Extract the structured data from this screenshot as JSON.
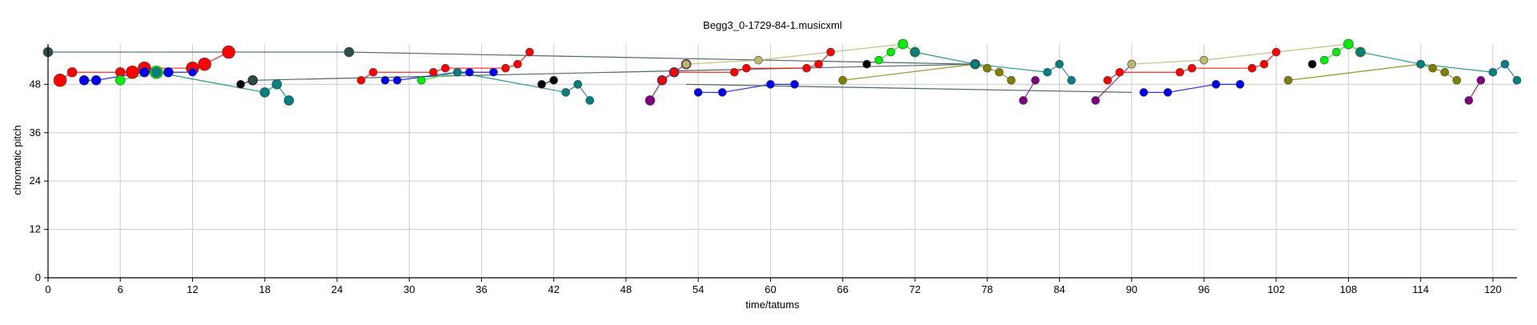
{
  "chart_data": {
    "type": "scatter",
    "title": "Begg3_0-1729-84-1.musicxml",
    "xlabel": "time/tatums",
    "ylabel": "chromatic pitch",
    "xlim": [
      0,
      122
    ],
    "ylim": [
      0,
      58
    ],
    "xticks": [
      0,
      6,
      12,
      18,
      24,
      30,
      36,
      42,
      48,
      54,
      60,
      66,
      72,
      78,
      84,
      90,
      96,
      102,
      108,
      114,
      120
    ],
    "yticks": [
      0,
      12,
      24,
      36,
      48
    ],
    "grid": true,
    "legend": "none",
    "colors": {
      "red": "#ff0000",
      "blue": "#0000ee",
      "lime": "#00ee00",
      "teal": "#008080",
      "black": "#000000",
      "darkslate": "#2f4f4f",
      "olive": "#808000",
      "khaki": "#bdb76b",
      "purple": "#800080",
      "magenta": "#ff00ff"
    },
    "series": [
      {
        "color": "red",
        "values": [
          [
            1,
            49
          ],
          [
            2,
            51
          ],
          [
            6,
            51
          ],
          [
            7,
            51
          ],
          [
            8,
            52
          ],
          [
            12,
            52
          ],
          [
            13,
            53
          ],
          [
            15,
            56
          ]
        ],
        "sizes": [
          8,
          6,
          6,
          8,
          8,
          8,
          8,
          8
        ]
      },
      {
        "color": "blue",
        "values": [
          [
            3,
            49
          ],
          [
            4,
            49
          ],
          [
            8,
            51
          ],
          [
            10,
            51
          ],
          [
            12,
            51
          ]
        ],
        "sizes": [
          6,
          6,
          6,
          6,
          5
        ]
      },
      {
        "color": "lime",
        "values": [
          [
            6,
            49
          ],
          [
            9,
            51
          ]
        ],
        "sizes": [
          6,
          8
        ]
      },
      {
        "color": "teal",
        "values": [
          [
            9,
            51
          ],
          [
            18,
            46
          ],
          [
            19,
            48
          ],
          [
            20,
            44
          ]
        ],
        "sizes": [
          6,
          6,
          6,
          6
        ]
      },
      {
        "color": "black",
        "values": [
          [
            16,
            48
          ],
          [
            17,
            49
          ]
        ],
        "sizes": [
          5,
          6
        ]
      },
      {
        "color": "darkslate",
        "values": [
          [
            0,
            56
          ],
          [
            25,
            56
          ],
          [
            77,
            53
          ],
          [
            17,
            49
          ]
        ],
        "sizes": [
          6,
          6,
          6,
          5
        ]
      },
      {
        "color": "red",
        "values": [
          [
            26,
            49
          ],
          [
            27,
            51
          ],
          [
            32,
            51
          ],
          [
            33,
            52
          ],
          [
            38,
            52
          ],
          [
            39,
            53
          ],
          [
            40,
            56
          ]
        ],
        "sizes": [
          5,
          5,
          5,
          5,
          5,
          5,
          5
        ]
      },
      {
        "color": "blue",
        "values": [
          [
            28,
            49
          ],
          [
            29,
            49
          ],
          [
            34,
            51
          ],
          [
            35,
            51
          ],
          [
            37,
            51
          ]
        ],
        "sizes": [
          5,
          5,
          5,
          5,
          5
        ]
      },
      {
        "color": "lime",
        "values": [
          [
            31,
            49
          ],
          [
            34,
            51
          ]
        ],
        "sizes": [
          5,
          5
        ]
      },
      {
        "color": "teal",
        "values": [
          [
            34,
            51
          ],
          [
            43,
            46
          ],
          [
            44,
            48
          ],
          [
            45,
            44
          ]
        ],
        "sizes": [
          5,
          5,
          5,
          5
        ]
      },
      {
        "color": "black",
        "values": [
          [
            41,
            48
          ],
          [
            42,
            49
          ]
        ],
        "sizes": [
          5,
          5
        ]
      },
      {
        "color": "purple",
        "values": [
          [
            50,
            44
          ],
          [
            51,
            49
          ],
          [
            52,
            51
          ],
          [
            53,
            53
          ]
        ],
        "sizes": [
          6,
          6,
          6,
          6
        ]
      },
      {
        "color": "red",
        "values": [
          [
            51,
            49
          ],
          [
            52,
            51
          ],
          [
            57,
            51
          ],
          [
            58,
            52
          ],
          [
            63,
            52
          ],
          [
            64,
            53
          ],
          [
            65,
            56
          ]
        ],
        "sizes": [
          5,
          5,
          5,
          5,
          5,
          5,
          5
        ]
      },
      {
        "color": "blue",
        "values": [
          [
            54,
            46
          ],
          [
            56,
            46
          ],
          [
            60,
            48
          ],
          [
            62,
            48
          ]
        ],
        "sizes": [
          5,
          5,
          5,
          5
        ]
      },
      {
        "color": "olive",
        "values": [
          [
            66,
            49
          ],
          [
            77,
            53
          ],
          [
            78,
            52
          ],
          [
            79,
            51
          ],
          [
            80,
            49
          ]
        ],
        "sizes": [
          5,
          5,
          5,
          5,
          5
        ]
      },
      {
        "color": "khaki",
        "values": [
          [
            53,
            53
          ],
          [
            59,
            54
          ],
          [
            71,
            58
          ],
          [
            72,
            56
          ]
        ],
        "sizes": [
          5,
          5,
          6,
          6
        ]
      },
      {
        "color": "lime",
        "values": [
          [
            69,
            54
          ],
          [
            70,
            56
          ],
          [
            71,
            58
          ],
          [
            72,
            56
          ]
        ],
        "sizes": [
          5,
          5,
          6,
          6
        ]
      },
      {
        "color": "black",
        "values": [
          [
            68,
            53
          ]
        ],
        "sizes": [
          5
        ]
      },
      {
        "color": "teal",
        "values": [
          [
            72,
            56
          ],
          [
            77,
            53
          ],
          [
            83,
            51
          ],
          [
            84,
            53
          ],
          [
            85,
            49
          ]
        ],
        "sizes": [
          5,
          5,
          5,
          5,
          5
        ]
      },
      {
        "color": "purple",
        "values": [
          [
            81,
            44
          ],
          [
            82,
            49
          ]
        ],
        "sizes": [
          5,
          5
        ]
      },
      {
        "color": "darkslate",
        "values": [
          [
            53,
            48
          ],
          [
            90,
            46
          ]
        ],
        "sizes": [
          1,
          1
        ]
      },
      {
        "color": "purple",
        "values": [
          [
            87,
            44
          ],
          [
            90,
            53
          ]
        ],
        "sizes": [
          5,
          5
        ]
      },
      {
        "color": "red",
        "values": [
          [
            88,
            49
          ],
          [
            89,
            51
          ],
          [
            94,
            51
          ],
          [
            95,
            52
          ],
          [
            100,
            52
          ],
          [
            101,
            53
          ],
          [
            102,
            56
          ]
        ],
        "sizes": [
          5,
          5,
          5,
          5,
          5,
          5,
          5
        ]
      },
      {
        "color": "blue",
        "values": [
          [
            91,
            46
          ],
          [
            93,
            46
          ],
          [
            97,
            48
          ],
          [
            99,
            48
          ]
        ],
        "sizes": [
          5,
          5,
          5,
          5
        ]
      },
      {
        "color": "khaki",
        "values": [
          [
            90,
            53
          ],
          [
            96,
            54
          ],
          [
            108,
            58
          ],
          [
            109,
            56
          ]
        ],
        "sizes": [
          5,
          5,
          6,
          6
        ]
      },
      {
        "color": "lime",
        "values": [
          [
            106,
            54
          ],
          [
            107,
            56
          ],
          [
            108,
            58
          ],
          [
            109,
            56
          ]
        ],
        "sizes": [
          5,
          5,
          6,
          6
        ]
      },
      {
        "color": "black",
        "values": [
          [
            105,
            53
          ]
        ],
        "sizes": [
          5
        ]
      },
      {
        "color": "olive",
        "values": [
          [
            103,
            49
          ],
          [
            114,
            53
          ],
          [
            115,
            52
          ],
          [
            116,
            51
          ],
          [
            117,
            49
          ]
        ],
        "sizes": [
          5,
          5,
          5,
          5,
          5
        ]
      },
      {
        "color": "teal",
        "values": [
          [
            109,
            56
          ],
          [
            114,
            53
          ],
          [
            120,
            51
          ],
          [
            121,
            53
          ],
          [
            122,
            49
          ]
        ],
        "sizes": [
          5,
          5,
          5,
          5,
          5
        ]
      },
      {
        "color": "purple",
        "values": [
          [
            118,
            44
          ],
          [
            119,
            49
          ]
        ],
        "sizes": [
          5,
          5
        ]
      }
    ]
  }
}
